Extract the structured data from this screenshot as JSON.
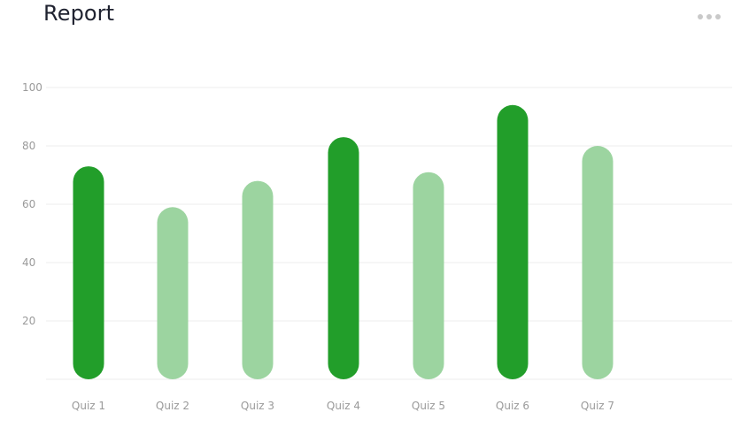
{
  "header": {
    "title": "Report",
    "menu_icon": "more-horizontal-icon"
  },
  "chart_data": {
    "type": "bar",
    "title": "Report",
    "xlabel": "",
    "ylabel": "",
    "categories": [
      "Quiz 1",
      "Quiz 2",
      "Quiz 3",
      "Quiz 4",
      "Quiz 5",
      "Quiz 6",
      "Quiz 7"
    ],
    "values": [
      73,
      59,
      68,
      83,
      71,
      94,
      80
    ],
    "highlighted": [
      true,
      false,
      false,
      true,
      false,
      true,
      false
    ],
    "ylim": [
      0,
      100
    ],
    "yticks": [
      20,
      40,
      60,
      80,
      100
    ],
    "grid": true,
    "colors": {
      "highlight": "#229e2a",
      "normal": "#9cd4a0",
      "grid": "#ececec",
      "axis_text": "#9a9a9a"
    }
  }
}
